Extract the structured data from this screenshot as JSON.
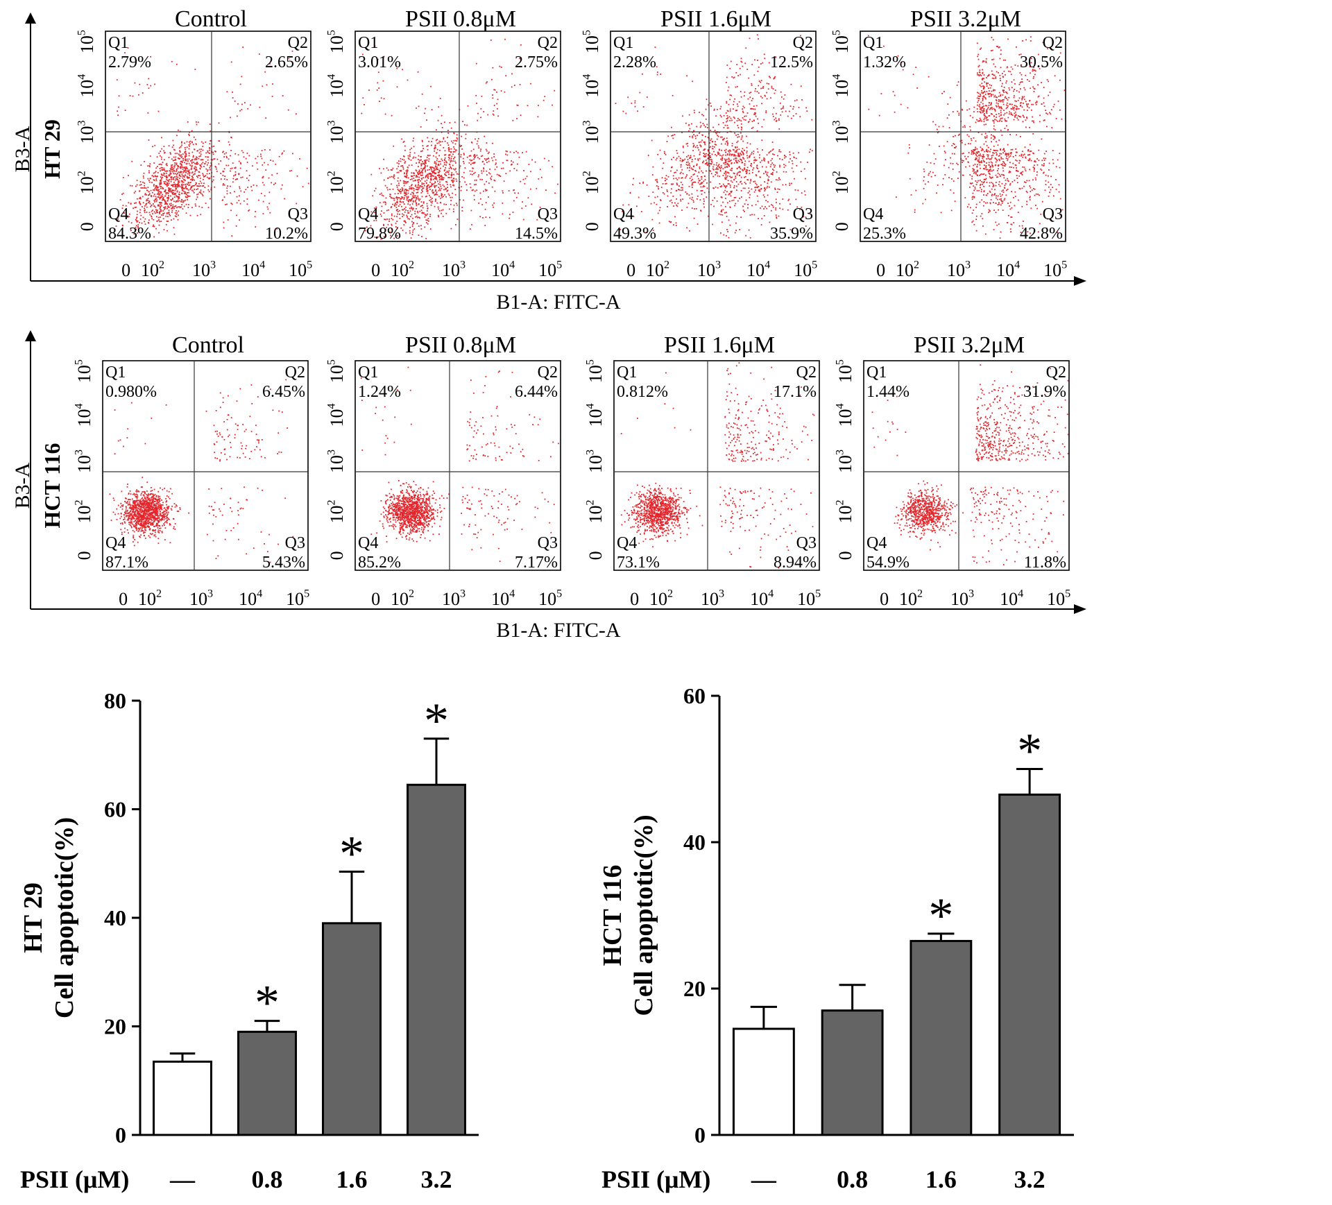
{
  "chart_data": [
    {
      "type": "scatter",
      "subtype": "flow-cytometry-quadrant-grid",
      "cell_line": "HT 29",
      "y_axis_label": "B3-A",
      "x_axis_label": "B1-A: FITC-A",
      "x_ticks": [
        "0",
        "10^2",
        "10^3",
        "10^4",
        "10^5"
      ],
      "y_ticks": [
        "0",
        "10^2",
        "10^3",
        "10^4",
        "10^5"
      ],
      "quadrant_labels": [
        "Q1",
        "Q2",
        "Q3",
        "Q4"
      ],
      "panels": [
        {
          "title": "Control",
          "q1": "2.79%",
          "q2": "2.65%",
          "q3": "10.2%",
          "q4": "84.3%"
        },
        {
          "title": "PSII 0.8μM",
          "q1": "3.01%",
          "q2": "2.75%",
          "q3": "14.5%",
          "q4": "79.8%"
        },
        {
          "title": "PSII 1.6μM",
          "q1": "2.28%",
          "q2": "12.5%",
          "q3": "35.9%",
          "q4": "49.3%"
        },
        {
          "title": "PSII 3.2μM",
          "q1": "1.32%",
          "q2": "30.5%",
          "q3": "42.8%",
          "q4": "25.3%"
        }
      ]
    },
    {
      "type": "scatter",
      "subtype": "flow-cytometry-quadrant-grid",
      "cell_line": "HCT 116",
      "y_axis_label": "B3-A",
      "x_axis_label": "B1-A: FITC-A",
      "x_ticks": [
        "0",
        "10^2",
        "10^3",
        "10^4",
        "10^5"
      ],
      "y_ticks": [
        "0",
        "10^2",
        "10^3",
        "10^4",
        "10^5"
      ],
      "quadrant_labels": [
        "Q1",
        "Q2",
        "Q3",
        "Q4"
      ],
      "panels": [
        {
          "title": "Control",
          "q1": "0.980%",
          "q2": "6.45%",
          "q3": "5.43%",
          "q4": "87.1%"
        },
        {
          "title": "PSII 0.8μM",
          "q1": "1.24%",
          "q2": "6.44%",
          "q3": "7.17%",
          "q4": "85.2%"
        },
        {
          "title": "PSII 1.6μM",
          "q1": "0.812%",
          "q2": "17.1%",
          "q3": "8.94%",
          "q4": "73.1%"
        },
        {
          "title": "PSII 3.2μM",
          "q1": "1.44%",
          "q2": "31.9%",
          "q3": "",
          "q4": "54.9%",
          "q3_value_only": "11.8%"
        }
      ]
    },
    {
      "type": "bar",
      "cell_line": "HT 29",
      "ylabel": "Cell apoptotic(%)",
      "xlabel": "PSII (μM)",
      "categories": [
        "—",
        "0.8",
        "1.6",
        "3.2"
      ],
      "values": [
        13.5,
        19,
        39,
        64.5
      ],
      "errors": [
        1.5,
        2,
        9.5,
        8.5
      ],
      "significant": [
        false,
        true,
        true,
        true
      ],
      "significance_marker": "*",
      "ylim": [
        0,
        80
      ],
      "yticks": [
        0,
        20,
        40,
        60,
        80
      ],
      "bar_fill": [
        "#ffffff",
        "#646464",
        "#646464",
        "#646464"
      ]
    },
    {
      "type": "bar",
      "cell_line": "HCT 116",
      "ylabel": "Cell apoptotic(%)",
      "xlabel": "PSII (μM)",
      "categories": [
        "—",
        "0.8",
        "1.6",
        "3.2"
      ],
      "values": [
        14.5,
        17,
        26.5,
        46.5
      ],
      "errors": [
        3,
        3.5,
        1,
        3.5
      ],
      "significant": [
        false,
        false,
        true,
        true
      ],
      "significance_marker": "*",
      "ylim": [
        0,
        60
      ],
      "yticks": [
        0,
        20,
        40,
        60
      ],
      "bar_fill": [
        "#ffffff",
        "#646464",
        "#646464",
        "#646464"
      ]
    }
  ],
  "colors": {
    "dot": "#e3262c",
    "bar_treated": "#646464",
    "bar_control": "#ffffff",
    "axis": "#000000"
  }
}
